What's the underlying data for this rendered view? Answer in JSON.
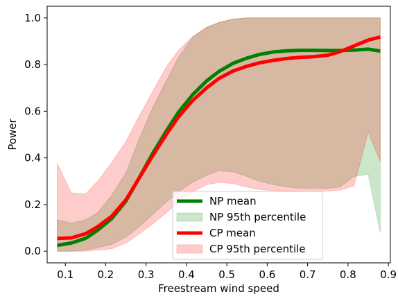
{
  "chart_data": {
    "type": "line",
    "title": "",
    "xlabel": "Freestream wind speed",
    "ylabel": "Power",
    "xlim": [
      0.055,
      0.905
    ],
    "ylim": [
      -0.05,
      1.05
    ],
    "xticks": [
      0.1,
      0.2,
      0.3,
      0.4,
      0.5,
      0.6,
      0.7,
      0.8,
      0.9
    ],
    "xtick_labels": [
      "0.1",
      "0.2",
      "0.3",
      "0.4",
      "0.5",
      "0.6",
      "0.7",
      "0.8",
      "0.9"
    ],
    "yticks": [
      0.0,
      0.2,
      0.4,
      0.6,
      0.8,
      1.0
    ],
    "ytick_labels": [
      "0.0",
      "0.2",
      "0.4",
      "0.6",
      "0.8",
      "1.0"
    ],
    "grid": false,
    "legend_placement": "lower-center",
    "x": [
      0.08,
      0.115,
      0.15,
      0.18,
      0.215,
      0.25,
      0.28,
      0.315,
      0.35,
      0.38,
      0.415,
      0.45,
      0.48,
      0.515,
      0.55,
      0.58,
      0.615,
      0.65,
      0.68,
      0.715,
      0.75,
      0.78,
      0.815,
      0.85,
      0.88
    ],
    "series": [
      {
        "name": "NP mean",
        "kind": "line",
        "color": "#008000",
        "values": [
          0.025,
          0.035,
          0.055,
          0.09,
          0.14,
          0.215,
          0.305,
          0.415,
          0.515,
          0.595,
          0.67,
          0.73,
          0.77,
          0.805,
          0.828,
          0.843,
          0.854,
          0.859,
          0.861,
          0.861,
          0.86,
          0.86,
          0.862,
          0.866,
          0.858
        ]
      },
      {
        "name": "NP 95th percentile",
        "kind": "band",
        "color": "#008000",
        "lower": [
          0.0,
          0.0,
          0.005,
          0.015,
          0.03,
          0.06,
          0.1,
          0.155,
          0.21,
          0.255,
          0.295,
          0.325,
          0.345,
          0.34,
          0.32,
          0.3,
          0.285,
          0.275,
          0.27,
          0.27,
          0.27,
          0.275,
          0.32,
          0.33,
          0.08
        ],
        "upper": [
          0.135,
          0.12,
          0.135,
          0.165,
          0.24,
          0.335,
          0.47,
          0.61,
          0.73,
          0.83,
          0.915,
          0.96,
          0.98,
          0.995,
          1.0,
          1.0,
          1.0,
          1.0,
          1.0,
          1.0,
          1.0,
          1.0,
          1.0,
          1.0,
          1.0
        ]
      },
      {
        "name": "CP mean",
        "kind": "line",
        "color": "#ff0000",
        "values": [
          0.055,
          0.057,
          0.075,
          0.105,
          0.15,
          0.22,
          0.305,
          0.405,
          0.5,
          0.575,
          0.645,
          0.7,
          0.74,
          0.772,
          0.793,
          0.807,
          0.818,
          0.826,
          0.831,
          0.834,
          0.84,
          0.855,
          0.88,
          0.905,
          0.918
        ]
      },
      {
        "name": "CP 95th percentile",
        "kind": "band",
        "color": "#ff0000",
        "lower": [
          0.0,
          0.0,
          0.0,
          0.005,
          0.01,
          0.035,
          0.07,
          0.115,
          0.165,
          0.21,
          0.255,
          0.285,
          0.295,
          0.29,
          0.275,
          0.265,
          0.26,
          0.258,
          0.257,
          0.257,
          0.258,
          0.262,
          0.28,
          0.51,
          0.385
        ],
        "upper": [
          0.375,
          0.25,
          0.245,
          0.3,
          0.38,
          0.47,
          0.57,
          0.68,
          0.79,
          0.86,
          0.92,
          0.96,
          0.98,
          0.995,
          1.0,
          1.0,
          1.0,
          1.0,
          1.0,
          1.0,
          1.0,
          1.0,
          1.0,
          1.0,
          1.0
        ]
      }
    ]
  }
}
